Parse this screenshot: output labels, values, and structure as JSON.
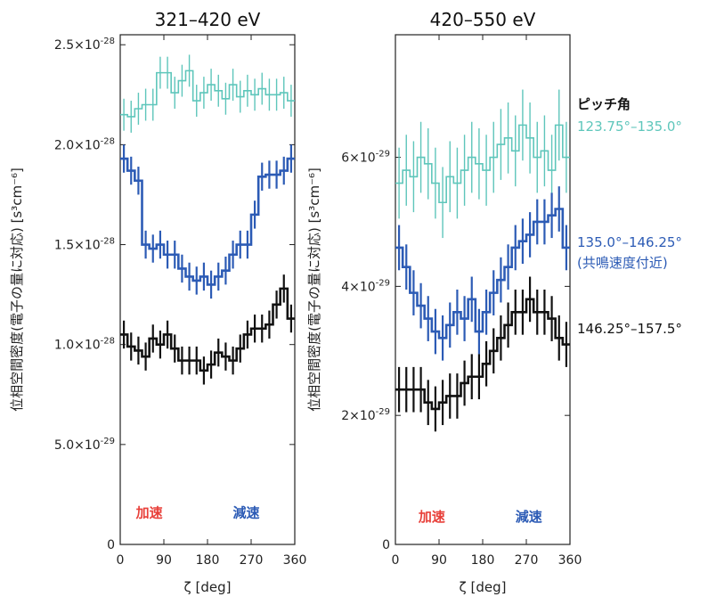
{
  "chart_data": [
    {
      "type": "line",
      "title": "321–420 eV",
      "xlabel": "ζ [deg]",
      "ylabel": "位相空間密度(電子の量に対応) [s³cm⁻⁶]",
      "xlim": [
        0,
        360
      ],
      "ylim": [
        0,
        2.55e-28
      ],
      "x_ticks": [
        "0",
        "90",
        "180",
        "270",
        "360"
      ],
      "y_ticks": [
        {
          "value": 0,
          "label": "0"
        },
        {
          "value": 5e-29,
          "label": "5.0×10⁻²⁹"
        },
        {
          "value": 1e-28,
          "label": "1.0×10⁻²⁸"
        },
        {
          "value": 1.5e-28,
          "label": "1.5×10⁻²⁸"
        },
        {
          "value": 2e-28,
          "label": "2.0×10⁻²⁸"
        },
        {
          "value": 2.5e-28,
          "label": "2.5×10⁻²⁸"
        }
      ],
      "annotations": [
        {
          "text": "加速",
          "x": 60,
          "y": 1e-29,
          "color": "#e8403a"
        },
        {
          "text": "減速",
          "x": 260,
          "y": 1e-29,
          "color": "#2c5bb5"
        }
      ],
      "x": [
        7.5,
        22.5,
        37.5,
        52.5,
        67.5,
        82.5,
        97.5,
        112.5,
        127.5,
        142.5,
        157.5,
        172.5,
        187.5,
        202.5,
        217.5,
        232.5,
        247.5,
        262.5,
        277.5,
        292.5,
        307.5,
        322.5,
        337.5,
        352.5
      ],
      "series": [
        {
          "name": "123.75°–135.0°",
          "color": "#5ec6bb",
          "values": [
            2.15e-28,
            2.14e-28,
            2.18e-28,
            2.2e-28,
            2.2e-28,
            2.36e-28,
            2.36e-28,
            2.26e-28,
            2.32e-28,
            2.37e-28,
            2.22e-28,
            2.26e-28,
            2.3e-28,
            2.27e-28,
            2.23e-28,
            2.3e-28,
            2.24e-28,
            2.27e-28,
            2.25e-28,
            2.28e-28,
            2.25e-28,
            2.25e-28,
            2.26e-28,
            2.22e-28
          ],
          "err": 8e-30
        },
        {
          "name": "135.0°–146.25°",
          "color": "#2c5bb5",
          "values": [
            1.93e-28,
            1.87e-28,
            1.82e-28,
            1.5e-28,
            1.48e-28,
            1.5e-28,
            1.45e-28,
            1.45e-28,
            1.38e-28,
            1.34e-28,
            1.32e-28,
            1.34e-28,
            1.3e-28,
            1.34e-28,
            1.37e-28,
            1.45e-28,
            1.5e-28,
            1.5e-28,
            1.65e-28,
            1.84e-28,
            1.85e-28,
            1.85e-28,
            1.87e-28,
            1.93e-28
          ],
          "err": 7e-30
        },
        {
          "name": "146.25°–157.5°",
          "color": "#111111",
          "values": [
            1.05e-28,
            9.9e-29,
            9.7e-29,
            9.4e-29,
            1.03e-28,
            1e-28,
            1.05e-28,
            9.8e-29,
            9.2e-29,
            9.2e-29,
            9.2e-29,
            8.7e-29,
            9e-29,
            9.6e-29,
            9.4e-29,
            9.2e-29,
            9.8e-29,
            1.05e-28,
            1.08e-28,
            1.08e-28,
            1.1e-28,
            1.2e-28,
            1.28e-28,
            1.13e-28
          ],
          "err": 7e-30
        }
      ]
    },
    {
      "type": "line",
      "title": "420–550 eV",
      "xlabel": "ζ [deg]",
      "ylabel": "位相空間密度(電子の量に対応) [s³cm⁻⁶]",
      "xlim": [
        0,
        360
      ],
      "ylim": [
        0,
        7.9e-29
      ],
      "x_ticks": [
        "0",
        "90",
        "180",
        "270",
        "360"
      ],
      "y_ticks": [
        {
          "value": 0,
          "label": "0"
        },
        {
          "value": 2e-29,
          "label": "2×10⁻²⁹"
        },
        {
          "value": 4e-29,
          "label": "4×10⁻²⁹"
        },
        {
          "value": 6e-29,
          "label": "6×10⁻²⁹"
        }
      ],
      "annotations": [
        {
          "text": "加速",
          "x": 75,
          "y": 2.5e-30,
          "color": "#e8403a"
        },
        {
          "text": "減速",
          "x": 275,
          "y": 2.5e-30,
          "color": "#2c5bb5"
        }
      ],
      "x": [
        7.5,
        22.5,
        37.5,
        52.5,
        67.5,
        82.5,
        97.5,
        112.5,
        127.5,
        142.5,
        157.5,
        172.5,
        187.5,
        202.5,
        217.5,
        232.5,
        247.5,
        262.5,
        277.5,
        292.5,
        307.5,
        322.5,
        337.5,
        352.5
      ],
      "series": [
        {
          "name": "123.75°–135.0°",
          "color": "#5ec6bb",
          "values": [
            5.6e-29,
            5.8e-29,
            5.7e-29,
            6e-29,
            5.9e-29,
            5.6e-29,
            5.3e-29,
            5.7e-29,
            5.6e-29,
            5.8e-29,
            6e-29,
            5.9e-29,
            5.8e-29,
            6e-29,
            6.2e-29,
            6.3e-29,
            6.1e-29,
            6.5e-29,
            6.3e-29,
            6e-29,
            6.1e-29,
            5.8e-29,
            6.5e-29,
            6e-29
          ],
          "err": 5.5e-30
        },
        {
          "name": "135.0°–146.25°",
          "color": "#2c5bb5",
          "values": [
            4.6e-29,
            4.3e-29,
            3.9e-29,
            3.7e-29,
            3.5e-29,
            3.3e-29,
            3.2e-29,
            3.4e-29,
            3.6e-29,
            3.5e-29,
            3.8e-29,
            3.3e-29,
            3.6e-29,
            3.9e-29,
            4.1e-29,
            4.3e-29,
            4.6e-29,
            4.7e-29,
            4.8e-29,
            5e-29,
            5e-29,
            5.1e-29,
            5.2e-29,
            4.6e-29
          ],
          "err": 3.5e-30
        },
        {
          "name": "146.25°–157.5°",
          "color": "#111111",
          "values": [
            2.4e-29,
            2.4e-29,
            2.4e-29,
            2.4e-29,
            2.2e-29,
            2.1e-29,
            2.2e-29,
            2.3e-29,
            2.3e-29,
            2.5e-29,
            2.6e-29,
            2.6e-29,
            2.8e-29,
            3e-29,
            3.2e-29,
            3.4e-29,
            3.6e-29,
            3.6e-29,
            3.8e-29,
            3.6e-29,
            3.6e-29,
            3.5e-29,
            3.2e-29,
            3.1e-29
          ],
          "err": 3.5e-30
        }
      ]
    }
  ],
  "legend": {
    "title": "ピッチ角",
    "items": [
      {
        "label": "123.75°–135.0°",
        "color": "#5ec6bb"
      },
      {
        "label": "135.0°–146.25°",
        "note": "(共鳴速度付近)",
        "color": "#2c5bb5"
      },
      {
        "label": "146.25°–157.5°",
        "color": "#111111"
      }
    ]
  }
}
